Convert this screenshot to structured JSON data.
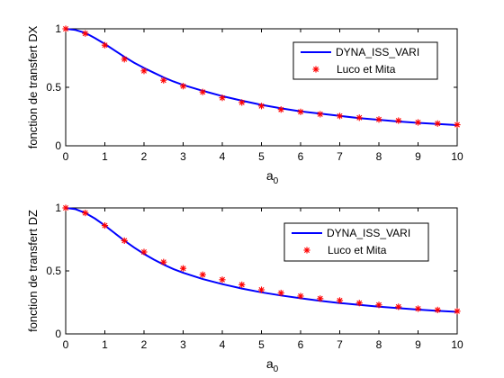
{
  "chart_data": [
    {
      "type": "line",
      "title": "",
      "xlabel": "a",
      "xlabel_sub": "0",
      "ylabel": "fonction de transfert DX",
      "xlim": [
        0,
        10
      ],
      "ylim": [
        0,
        1
      ],
      "xticks": [
        "0",
        "1",
        "2",
        "3",
        "4",
        "5",
        "6",
        "7",
        "8",
        "9",
        "10"
      ],
      "yticks": [
        "0",
        "0.5",
        "1"
      ],
      "grid": false,
      "legend_position": "top-right",
      "series": [
        {
          "name": "DYNA_ISS_VARI",
          "style": "line",
          "color": "#0000ff",
          "x": [
            0,
            0.25,
            0.5,
            0.75,
            1,
            1.25,
            1.5,
            1.75,
            2,
            2.25,
            2.5,
            2.75,
            3,
            3.5,
            4,
            4.5,
            5,
            5.5,
            6,
            6.5,
            7,
            7.5,
            8,
            8.5,
            9,
            9.5,
            10
          ],
          "y": [
            1.0,
            0.99,
            0.965,
            0.92,
            0.87,
            0.815,
            0.76,
            0.71,
            0.665,
            0.625,
            0.585,
            0.55,
            0.52,
            0.47,
            0.425,
            0.385,
            0.35,
            0.32,
            0.295,
            0.275,
            0.255,
            0.237,
            0.222,
            0.208,
            0.196,
            0.186,
            0.177
          ]
        },
        {
          "name": "Luco et Mita",
          "style": "markers",
          "marker": "*",
          "color": "#ff0000",
          "x": [
            0,
            0.5,
            1,
            1.5,
            2,
            2.5,
            3,
            3.5,
            4,
            4.5,
            5,
            5.5,
            6,
            6.5,
            7,
            7.5,
            8,
            8.5,
            9,
            9.5,
            10
          ],
          "y": [
            1.0,
            0.96,
            0.86,
            0.74,
            0.64,
            0.56,
            0.51,
            0.46,
            0.41,
            0.37,
            0.34,
            0.31,
            0.29,
            0.27,
            0.255,
            0.24,
            0.225,
            0.215,
            0.2,
            0.19,
            0.18
          ]
        }
      ]
    },
    {
      "type": "line",
      "title": "",
      "xlabel": "a",
      "xlabel_sub": "0",
      "ylabel": "fonction de transfert DZ",
      "xlim": [
        0,
        10
      ],
      "ylim": [
        0,
        1
      ],
      "xticks": [
        "0",
        "1",
        "2",
        "3",
        "4",
        "5",
        "6",
        "7",
        "8",
        "9",
        "10"
      ],
      "yticks": [
        "0",
        "0.5",
        "1"
      ],
      "grid": false,
      "legend_position": "top-right",
      "series": [
        {
          "name": "DYNA_ISS_VARI",
          "style": "line",
          "color": "#0000ff",
          "x": [
            0,
            0.25,
            0.5,
            0.75,
            1,
            1.25,
            1.5,
            1.75,
            2,
            2.25,
            2.5,
            2.75,
            3,
            3.5,
            4,
            4.5,
            5,
            5.5,
            6,
            6.5,
            7,
            7.5,
            8,
            8.5,
            9,
            9.5,
            10
          ],
          "y": [
            1.0,
            0.99,
            0.96,
            0.915,
            0.86,
            0.8,
            0.74,
            0.685,
            0.635,
            0.59,
            0.55,
            0.515,
            0.485,
            0.435,
            0.395,
            0.36,
            0.33,
            0.305,
            0.283,
            0.263,
            0.245,
            0.23,
            0.216,
            0.204,
            0.193,
            0.183,
            0.175
          ]
        },
        {
          "name": "Luco et Mita",
          "style": "markers",
          "marker": "*",
          "color": "#ff0000",
          "x": [
            0,
            0.5,
            1,
            1.5,
            2,
            2.5,
            3,
            3.5,
            4,
            4.5,
            5,
            5.5,
            6,
            6.5,
            7,
            7.5,
            8,
            8.5,
            9,
            9.5,
            10
          ],
          "y": [
            1.0,
            0.96,
            0.86,
            0.74,
            0.65,
            0.57,
            0.52,
            0.47,
            0.43,
            0.39,
            0.35,
            0.325,
            0.3,
            0.28,
            0.265,
            0.245,
            0.23,
            0.215,
            0.2,
            0.19,
            0.18
          ]
        }
      ]
    }
  ]
}
